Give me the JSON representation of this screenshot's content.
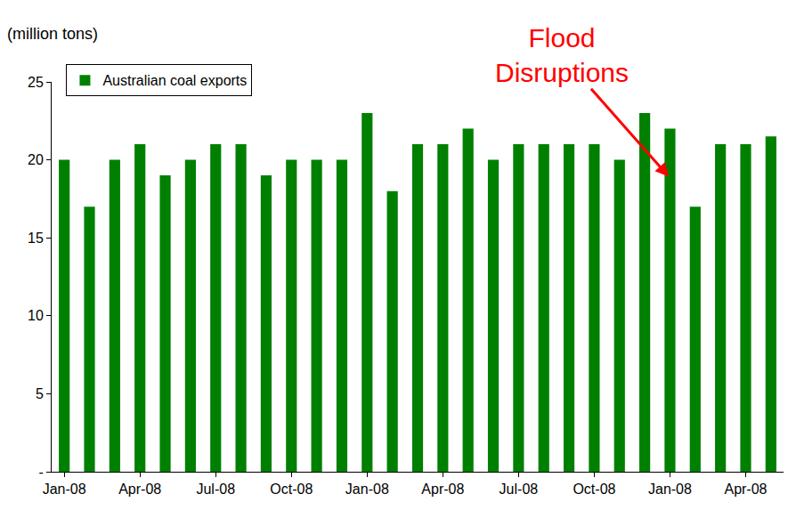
{
  "chart_data": {
    "type": "bar",
    "y_label": "(million tons)",
    "categories": [
      "Jan-08",
      null,
      null,
      "Apr-08",
      null,
      null,
      "Jul-08",
      null,
      null,
      "Oct-08",
      null,
      null,
      "Jan-08",
      null,
      null,
      "Apr-08",
      null,
      null,
      "Jul-08",
      null,
      null,
      "Oct-08",
      null,
      null,
      "Jan-08",
      null,
      null,
      "Apr-08",
      null
    ],
    "series": [
      {
        "name": "Australian coal exports",
        "color": "#008000",
        "values": [
          20,
          17,
          20,
          21,
          19,
          20,
          21,
          21,
          19,
          20,
          20,
          20,
          23,
          18,
          21,
          21,
          22,
          20,
          21,
          21,
          21,
          21,
          20,
          23,
          22,
          17,
          21,
          21,
          21.5
        ]
      }
    ],
    "ylim": [
      0,
      25
    ],
    "yticks": [
      {
        "value": 0,
        "label": "-"
      },
      5,
      10,
      15,
      20,
      25
    ],
    "grid": false,
    "legend": "top-left",
    "annotations": [
      {
        "text": "Flood Disruptions",
        "x": 25,
        "y": 17,
        "color": "#ff0000"
      }
    ]
  }
}
